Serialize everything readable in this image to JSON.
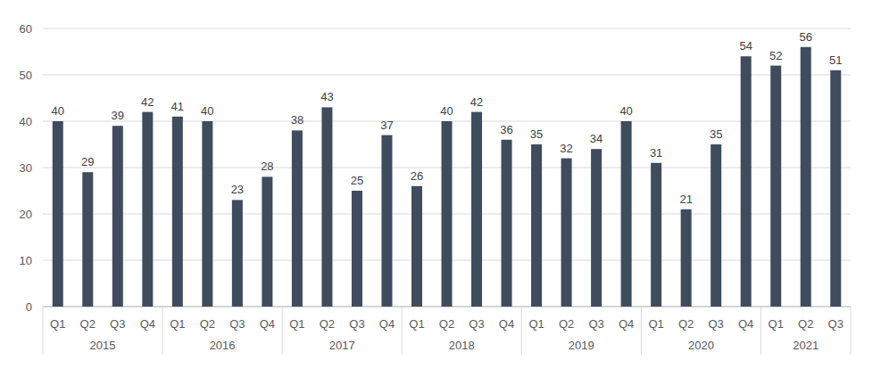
{
  "chart_data": {
    "type": "bar",
    "categories": [
      "Q1",
      "Q2",
      "Q3",
      "Q4",
      "Q1",
      "Q2",
      "Q3",
      "Q4",
      "Q1",
      "Q2",
      "Q3",
      "Q4",
      "Q1",
      "Q2",
      "Q3",
      "Q4",
      "Q1",
      "Q2",
      "Q3",
      "Q4",
      "Q1",
      "Q2",
      "Q3",
      "Q4",
      "Q1",
      "Q2",
      "Q3"
    ],
    "category_groups": [
      "2015",
      "2015",
      "2015",
      "2015",
      "2016",
      "2016",
      "2016",
      "2016",
      "2017",
      "2017",
      "2017",
      "2017",
      "2018",
      "2018",
      "2018",
      "2018",
      "2019",
      "2019",
      "2019",
      "2019",
      "2020",
      "2020",
      "2020",
      "2020",
      "2021",
      "2021",
      "2021"
    ],
    "values": [
      40,
      29,
      39,
      42,
      41,
      40,
      23,
      28,
      38,
      43,
      25,
      37,
      26,
      40,
      42,
      36,
      35,
      32,
      34,
      40,
      31,
      21,
      35,
      54,
      52,
      56,
      51
    ],
    "color": "#3e4c5e",
    "ylim": [
      0,
      60
    ],
    "yticks": [
      0,
      10,
      20,
      30,
      40,
      50,
      60
    ],
    "grid": true,
    "data_labels": true
  }
}
